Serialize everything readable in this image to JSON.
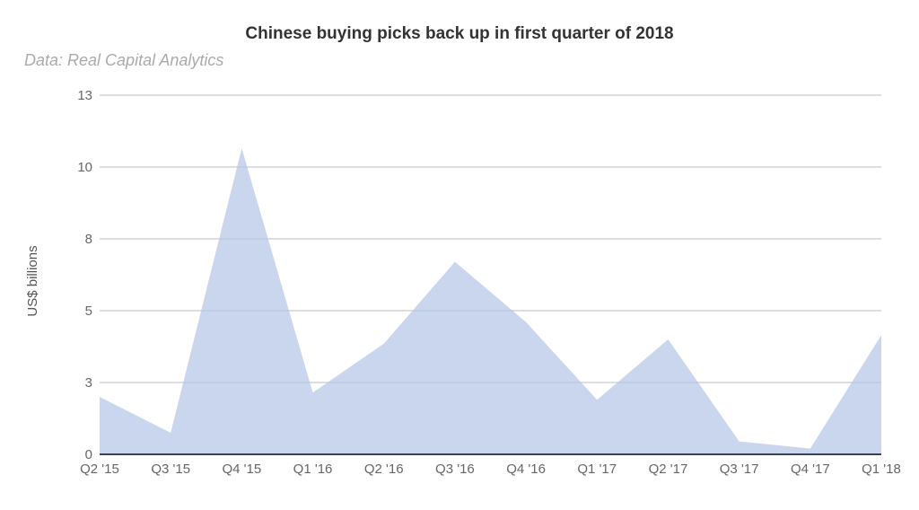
{
  "chart_data": {
    "type": "area",
    "title": "Chinese buying picks back up in first quarter of 2018",
    "subtitle": "Data: Real Capital Analytics",
    "xlabel": "",
    "ylabel": "US$ billions",
    "categories": [
      "Q2 '15",
      "Q3 '15",
      "Q4 '15",
      "Q1 '16",
      "Q2 '16",
      "Q3 '16",
      "Q4 '16",
      "Q1 '17",
      "Q2 '17",
      "Q3 '17",
      "Q4 '17",
      "Q1 '18"
    ],
    "values": [
      2.0,
      0.75,
      10.65,
      2.15,
      3.85,
      6.7,
      4.6,
      1.9,
      4.0,
      0.45,
      0.2,
      4.15
    ],
    "ylim": [
      0,
      12.5
    ],
    "yticks": [
      0,
      2.5,
      5,
      7.5,
      10,
      12.5
    ],
    "ytick_labels": [
      "0",
      "3",
      "5",
      "8",
      "10",
      "13"
    ],
    "grid": true,
    "legend": "none",
    "colors": {
      "fill": "#c6d4ec",
      "grid": "#e0e0e0",
      "baseline": "#3c4356"
    }
  }
}
